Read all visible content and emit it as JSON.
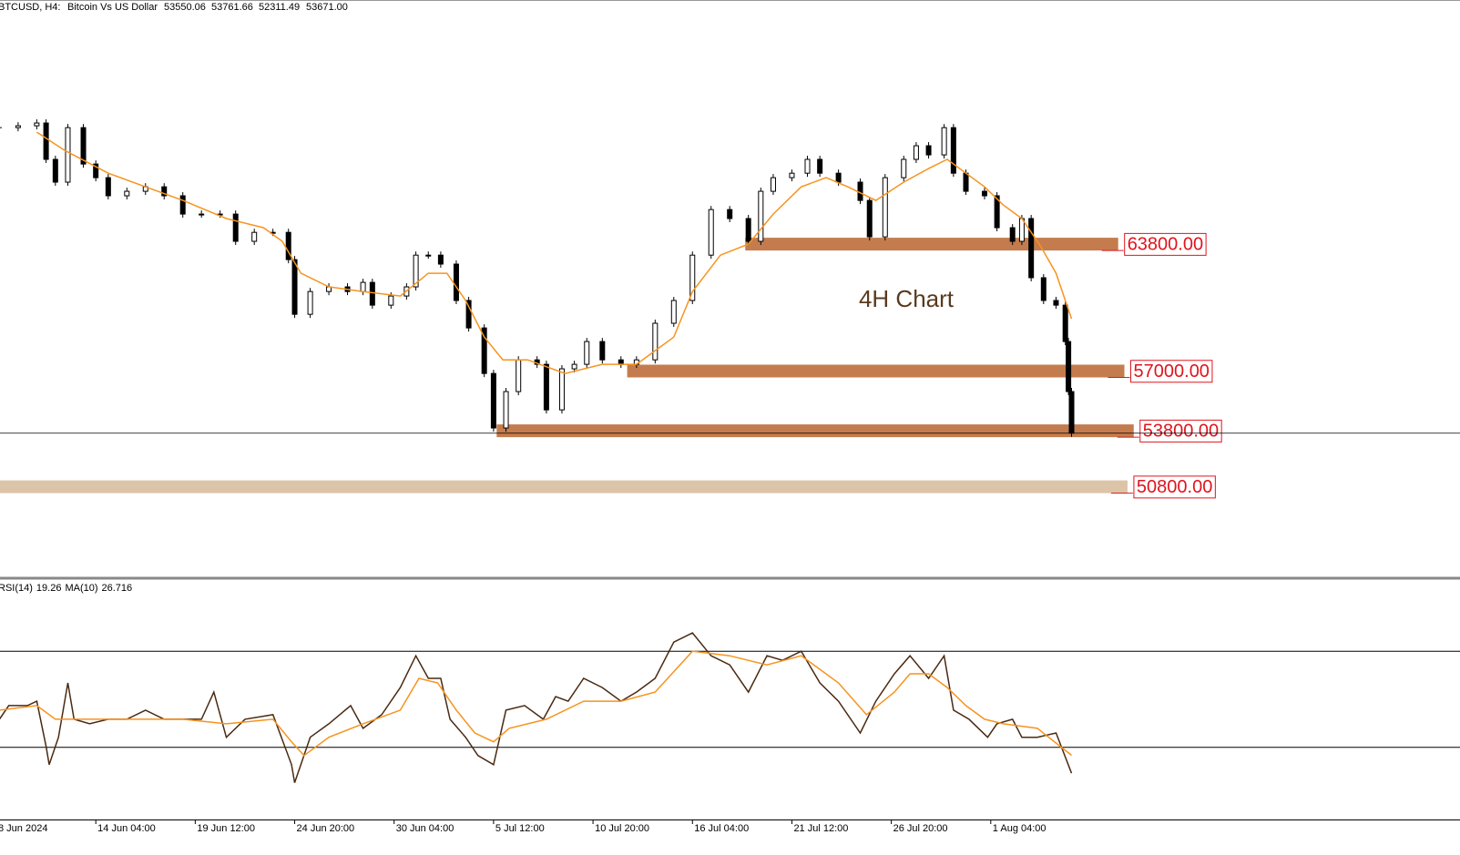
{
  "header": {
    "symbol": "BTCUSD, H4:",
    "description": "Bitcoin Vs US Dollar",
    "ohlc": [
      {
        "value": 53550.06,
        "label": "53550.06"
      },
      {
        "value": 53761.66,
        "label": "53761.66"
      },
      {
        "value": 52311.49,
        "label": "52311.49"
      },
      {
        "value": 53671.0,
        "label": "53671.00"
      }
    ]
  },
  "chart_data": [
    {
      "type": "candlestick",
      "annotation": "4H Chart",
      "xlim": [
        0,
        471
      ],
      "ylim": [
        46000,
        76000
      ],
      "xticks": [
        {
          "value": 0,
          "label": "8 Jun 2024"
        },
        {
          "value": 32,
          "label": "14 Jun 04:00"
        },
        {
          "value": 64,
          "label": "19 Jun 12:00"
        },
        {
          "value": 96,
          "label": "24 Jun 20:00"
        },
        {
          "value": 128,
          "label": "30 Jun 04:00"
        },
        {
          "value": 160,
          "label": "5 Jul 12:00"
        },
        {
          "value": 192,
          "label": "10 Jul 20:00"
        },
        {
          "value": 224,
          "label": "16 Jul 04:00"
        },
        {
          "value": 256,
          "label": "21 Jul 12:00"
        },
        {
          "value": 288,
          "label": "26 Jul 20:00"
        },
        {
          "value": 320,
          "label": "1 Aug 04:00"
        }
      ],
      "series": [
        {
          "name": "BTCUSD",
          "color": "#000000",
          "x": [
            1,
            7,
            13,
            16,
            19,
            23,
            28,
            32,
            36,
            42,
            48,
            54,
            60,
            66,
            72,
            77,
            83,
            89,
            94,
            96,
            101,
            107,
            113,
            118,
            121,
            127,
            132,
            135,
            139,
            143,
            148,
            152,
            157,
            160,
            164,
            168,
            174,
            177,
            182,
            186,
            190,
            195,
            201,
            206,
            212,
            218,
            224,
            230,
            236,
            242,
            246,
            250,
            256,
            261,
            265,
            271,
            278,
            281,
            286,
            292,
            296,
            300,
            305,
            308,
            312,
            318,
            322,
            327,
            330,
            333,
            337,
            341,
            344,
            345,
            346
          ],
          "values": [
            70040,
            70140,
            70290,
            68340,
            67120,
            70040,
            68090,
            67360,
            66390,
            66630,
            66870,
            66390,
            65410,
            65410,
            65410,
            63950,
            64430,
            64430,
            62970,
            60040,
            61260,
            61510,
            61260,
            61750,
            60530,
            61020,
            61510,
            63210,
            63210,
            62730,
            60780,
            59310,
            56870,
            53950,
            55900,
            57600,
            57360,
            54920,
            57120,
            57360,
            58580,
            57600,
            57360,
            57600,
            59560,
            60780,
            63210,
            65650,
            65170,
            63950,
            66630,
            67360,
            67600,
            68340,
            67600,
            67120,
            66140,
            64190,
            67360,
            68340,
            69070,
            68580,
            70040,
            67600,
            66630,
            66390,
            64680,
            63950,
            65170,
            62000,
            60780,
            60530,
            58580,
            55900,
            53671
          ]
        },
        {
          "name": "MA",
          "color": "#f7931e",
          "x": [
            13,
            22,
            36,
            48,
            60,
            74,
            86,
            92,
            98,
            107,
            118,
            130,
            139,
            145,
            151,
            157,
            163,
            171,
            183,
            195,
            206,
            218,
            224,
            233,
            242,
            250,
            259,
            267,
            274,
            283,
            292,
            300,
            306,
            312,
            318,
            324,
            330,
            336,
            341,
            346
          ],
          "values": [
            69800,
            68820,
            67600,
            66870,
            66140,
            65170,
            64680,
            63950,
            62240,
            61510,
            61260,
            61020,
            62240,
            62240,
            60780,
            58820,
            57600,
            57600,
            56870,
            57360,
            57360,
            58820,
            61260,
            63210,
            63800,
            65410,
            66870,
            67360,
            66870,
            66140,
            67120,
            67850,
            68340,
            67600,
            66870,
            65900,
            65170,
            63700,
            62240,
            59800
          ]
        }
      ],
      "zones": [
        {
          "value": 63800,
          "label": "63800.00",
          "from": 241,
          "to": 361,
          "color": "#c47c4e"
        },
        {
          "value": 57000,
          "label": "57000.00",
          "from": 203,
          "to": 363,
          "color": "#c47c4e"
        },
        {
          "value": 53800,
          "label": "53800.00",
          "from": 161,
          "to": 366,
          "color": "#c47c4e"
        },
        {
          "value": 50800,
          "label": "50800.00",
          "from": 0,
          "to": 364,
          "color": "#dcc4a8"
        }
      ]
    },
    {
      "type": "line",
      "title": "RSI(14)",
      "ma_title": "MA(10)",
      "xlim": [
        0,
        471
      ],
      "ylim": [
        0,
        100
      ],
      "levels": [
        70,
        30
      ],
      "series": [
        {
          "name": "RSI",
          "color": "#4a2a12",
          "x": [
            1,
            4,
            10,
            13,
            16,
            17,
            20,
            23,
            25,
            30,
            36,
            42,
            48,
            54,
            60,
            66,
            70,
            74,
            80,
            89,
            95,
            96,
            101,
            107,
            114,
            118,
            124,
            130,
            135,
            139,
            143,
            146,
            151,
            155,
            160,
            164,
            170,
            176,
            180,
            184,
            189,
            195,
            201,
            206,
            212,
            218,
            224,
            230,
            236,
            242,
            248,
            253,
            259,
            265,
            271,
            278,
            283,
            289,
            294,
            300,
            305,
            308,
            313,
            319,
            322,
            327,
            330,
            335,
            341,
            346
          ],
          "values": [
            41.7,
            47.4,
            47.4,
            49.2,
            30.4,
            22.8,
            34.2,
            56.8,
            41.7,
            39.8,
            41.7,
            41.7,
            45.5,
            41.7,
            41.7,
            41.7,
            53.0,
            34.2,
            41.7,
            43.6,
            22.8,
            15.3,
            34.2,
            39.8,
            47.4,
            37.9,
            43.6,
            54.9,
            68.1,
            58.7,
            58.7,
            41.7,
            34.2,
            26.6,
            22.8,
            45.5,
            47.4,
            41.7,
            51.1,
            49.2,
            58.7,
            54.9,
            49.2,
            53.0,
            58.7,
            73.8,
            77.6,
            68.1,
            64.3,
            53.0,
            68.1,
            66.2,
            70.0,
            56.8,
            49.2,
            36.0,
            49.2,
            60.6,
            68.1,
            58.7,
            68.1,
            45.5,
            41.7,
            34.2,
            39.8,
            41.7,
            34.2,
            34.2,
            36.0,
            19.26
          ]
        },
        {
          "name": "MA(10)",
          "color": "#f7931e",
          "x": [
            1,
            13,
            19,
            30,
            45,
            60,
            74,
            89,
            95,
            99,
            107,
            118,
            130,
            136,
            142,
            148,
            154,
            160,
            165,
            177,
            189,
            201,
            212,
            224,
            236,
            248,
            259,
            271,
            280,
            289,
            294,
            300,
            306,
            312,
            318,
            324,
            335,
            346
          ],
          "values": [
            45.5,
            47.4,
            41.7,
            41.7,
            41.7,
            41.7,
            39.8,
            41.7,
            32.3,
            26.6,
            34.2,
            39.8,
            45.5,
            58.7,
            56.8,
            45.5,
            36.0,
            32.3,
            37.9,
            41.7,
            49.2,
            49.2,
            53.0,
            70.0,
            68.1,
            64.3,
            68.1,
            56.8,
            43.6,
            53.0,
            60.6,
            60.6,
            54.9,
            47.4,
            41.7,
            39.8,
            37.9,
            26.716
          ]
        }
      ]
    }
  ]
}
